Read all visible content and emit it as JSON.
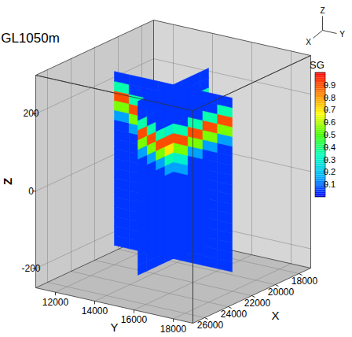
{
  "chart_data": {
    "type": "3d_slices",
    "title": "GL1050m",
    "x_label": "X",
    "y_label": "Y",
    "z_label": "Z",
    "xlim": [
      17000,
      27000
    ],
    "ylim": [
      11000,
      19000
    ],
    "zlim": [
      -250,
      300
    ],
    "xticks": [
      18000,
      20000,
      22000,
      24000,
      26000
    ],
    "yticks": [
      12000,
      14000,
      16000,
      18000
    ],
    "zticks": [
      -200,
      0,
      200
    ],
    "grid": true,
    "colorbar": {
      "label": "SG",
      "range": [
        0,
        1
      ],
      "ticks": [
        0.1,
        0.2,
        0.3,
        0.4,
        0.5,
        0.6,
        0.7,
        0.8,
        0.9
      ]
    },
    "slices": [
      {
        "plane": "x",
        "at": 22000,
        "h_edges": [
          12000,
          12750,
          13500,
          14250,
          15000,
          15750,
          16500,
          17250,
          18000
        ],
        "z_edges": [
          -200,
          -175,
          -150,
          -125,
          -100,
          -75,
          -50,
          -25,
          0,
          25,
          50,
          75,
          100,
          125,
          150,
          175,
          200,
          225,
          250
        ],
        "sg": [
          [
            0.05,
            0.05,
            0.05,
            0.05,
            0.05,
            0.05,
            0.05,
            0.05
          ],
          [
            0.05,
            0.05,
            0.05,
            0.05,
            0.05,
            0.05,
            0.05,
            0.05
          ],
          [
            0.05,
            0.05,
            0.05,
            0.05,
            0.05,
            0.05,
            0.05,
            0.05
          ],
          [
            0.05,
            0.05,
            0.05,
            0.05,
            0.05,
            0.05,
            0.05,
            0.05
          ],
          [
            0.05,
            0.05,
            0.05,
            0.05,
            0.05,
            0.05,
            0.05,
            0.05
          ],
          [
            0.05,
            0.05,
            0.05,
            0.05,
            0.05,
            0.05,
            0.05,
            0.05
          ],
          [
            0.05,
            0.05,
            0.05,
            0.05,
            0.05,
            0.05,
            0.05,
            0.05
          ],
          [
            0.05,
            0.05,
            0.05,
            0.05,
            0.05,
            0.05,
            0.05,
            0.05
          ],
          [
            0.05,
            0.05,
            0.05,
            0.05,
            0.05,
            0.05,
            0.05,
            0.05
          ],
          [
            0.05,
            0.05,
            0.05,
            0.15,
            0.15,
            0.05,
            0.05,
            0.05
          ],
          [
            0.05,
            0.05,
            0.05,
            0.3,
            0.3,
            0.05,
            0.05,
            0.05
          ],
          [
            0.05,
            0.05,
            0.15,
            0.55,
            0.55,
            0.15,
            0.05,
            0.05
          ],
          [
            0.05,
            0.15,
            0.55,
            0.9,
            0.9,
            0.55,
            0.15,
            0.05
          ],
          [
            0.15,
            0.55,
            0.9,
            0.35,
            0.35,
            0.9,
            0.55,
            0.15
          ],
          [
            0.55,
            0.9,
            0.35,
            0.05,
            0.05,
            0.35,
            0.9,
            0.55
          ],
          [
            0.9,
            0.35,
            0.05,
            0.05,
            0.05,
            0.05,
            0.35,
            0.9
          ],
          [
            0.35,
            0.05,
            0.05,
            0.05,
            0.05,
            0.05,
            0.05,
            0.35
          ],
          [
            0.05,
            0.05,
            0.05,
            0.05,
            0.05,
            0.05,
            0.05,
            0.05
          ]
        ]
      },
      {
        "plane": "y",
        "at": 15000,
        "h_edges": [
          19000,
          19750,
          20500,
          21250,
          22000,
          22750,
          23500,
          24250,
          25000
        ],
        "z_edges": [
          -200,
          -175,
          -150,
          -125,
          -100,
          -75,
          -50,
          -25,
          0,
          25,
          50,
          75,
          100,
          125,
          150,
          175,
          200,
          225,
          250
        ],
        "sg": [
          [
            0.05,
            0.05,
            0.05,
            0.05,
            0.05,
            0.05,
            0.05,
            0.05
          ],
          [
            0.05,
            0.05,
            0.05,
            0.05,
            0.05,
            0.05,
            0.05,
            0.05
          ],
          [
            0.05,
            0.05,
            0.05,
            0.05,
            0.05,
            0.05,
            0.05,
            0.05
          ],
          [
            0.05,
            0.05,
            0.05,
            0.05,
            0.05,
            0.05,
            0.05,
            0.05
          ],
          [
            0.05,
            0.05,
            0.05,
            0.05,
            0.05,
            0.05,
            0.05,
            0.05
          ],
          [
            0.05,
            0.05,
            0.05,
            0.05,
            0.05,
            0.05,
            0.05,
            0.05
          ],
          [
            0.05,
            0.05,
            0.05,
            0.05,
            0.05,
            0.05,
            0.05,
            0.05
          ],
          [
            0.05,
            0.05,
            0.05,
            0.05,
            0.05,
            0.05,
            0.05,
            0.05
          ],
          [
            0.05,
            0.05,
            0.05,
            0.05,
            0.05,
            0.05,
            0.05,
            0.05
          ],
          [
            0.05,
            0.05,
            0.05,
            0.15,
            0.15,
            0.05,
            0.05,
            0.05
          ],
          [
            0.05,
            0.05,
            0.15,
            0.35,
            0.35,
            0.15,
            0.05,
            0.05
          ],
          [
            0.05,
            0.15,
            0.55,
            0.7,
            0.7,
            0.55,
            0.15,
            0.05
          ],
          [
            0.15,
            0.55,
            0.9,
            0.9,
            0.9,
            0.9,
            0.55,
            0.15
          ],
          [
            0.55,
            0.9,
            0.35,
            0.3,
            0.3,
            0.35,
            0.9,
            0.55
          ],
          [
            0.9,
            0.35,
            0.05,
            0.05,
            0.05,
            0.05,
            0.35,
            0.9
          ],
          [
            0.35,
            0.05,
            0.05,
            0.05,
            0.05,
            0.05,
            0.05,
            0.35
          ],
          [
            0.05,
            0.05,
            0.05,
            0.05,
            0.05,
            0.05,
            0.05,
            0.05
          ],
          [
            0.05,
            0.05,
            0.05,
            0.05,
            0.05,
            0.05,
            0.05,
            0.05
          ]
        ]
      }
    ]
  }
}
